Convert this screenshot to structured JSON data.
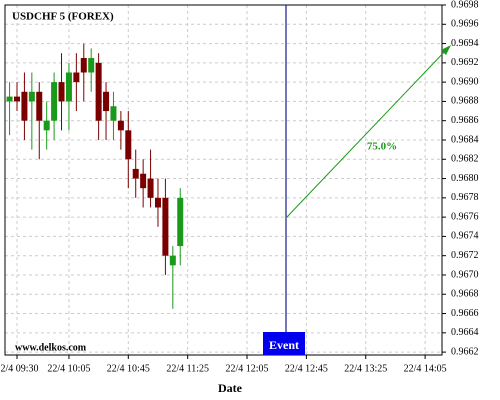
{
  "chart_data": {
    "type": "candlestick",
    "title": "USDCHF 5 (FOREX)",
    "x_label": "Date",
    "watermark": "www.delkos.com",
    "event_label": "Event",
    "arrow_label": "75.0%",
    "up_color": "#1a9a1a",
    "down_color": "#7a0000",
    "x": [
      "22/4 09:25",
      "22/4 09:30",
      "22/4 09:35",
      "22/4 09:40",
      "22/4 09:45",
      "22/4 09:50",
      "22/4 09:55",
      "22/4 10:00",
      "22/4 10:05",
      "22/4 10:10",
      "22/4 10:15",
      "22/4 10:20",
      "22/4 10:25",
      "22/4 10:30",
      "22/4 10:35",
      "22/4 10:40",
      "22/4 10:45",
      "22/4 10:50",
      "22/4 10:55",
      "22/4 11:00",
      "22/4 11:05",
      "22/4 11:10",
      "22/4 11:15",
      "22/4 11:20"
    ],
    "open": [
      0.9688,
      0.96885,
      0.9689,
      0.9688,
      0.9689,
      0.9685,
      0.9686,
      0.969,
      0.9688,
      0.9691,
      0.96925,
      0.9691,
      0.9692,
      0.9689,
      0.9686,
      0.9686,
      0.9685,
      0.9681,
      0.96805,
      0.968,
      0.9678,
      0.9678,
      0.9671,
      0.9673
    ],
    "high": [
      0.969,
      0.969,
      0.9691,
      0.9691,
      0.969,
      0.9688,
      0.9691,
      0.9693,
      0.9692,
      0.9693,
      0.9694,
      0.96935,
      0.9693,
      0.969,
      0.9689,
      0.9687,
      0.9687,
      0.9683,
      0.9682,
      0.9683,
      0.968,
      0.968,
      0.9673,
      0.9679
    ],
    "low": [
      0.96845,
      0.9687,
      0.9684,
      0.9683,
      0.9682,
      0.9683,
      0.9684,
      0.9685,
      0.9685,
      0.9687,
      0.9688,
      0.9689,
      0.9684,
      0.9684,
      0.9684,
      0.9683,
      0.9679,
      0.9678,
      0.9677,
      0.9677,
      0.9675,
      0.967,
      0.96665,
      0.9671
    ],
    "close": [
      0.96885,
      0.9688,
      0.9686,
      0.9689,
      0.9686,
      0.9686,
      0.969,
      0.9688,
      0.9691,
      0.969,
      0.9691,
      0.96925,
      0.9686,
      0.9687,
      0.96875,
      0.9685,
      0.9682,
      0.968,
      0.9679,
      0.9678,
      0.9677,
      0.9672,
      0.9672,
      0.9678
    ],
    "xticks": [
      "22/4 09:30",
      "22/4 10:05",
      "22/4 10:45",
      "22/4 11:25",
      "22/4 12:05",
      "22/4 12:45",
      "22/4 13:25",
      "22/4 14:05"
    ],
    "ylim": [
      0.96617,
      0.9698
    ],
    "yticks": [
      0.9662,
      0.9664,
      0.9666,
      0.9668,
      {
        "value": 0.967,
        "label": "0.9670"
      },
      0.9672,
      0.9674,
      0.9676,
      0.9678,
      {
        "value": 0.968,
        "label": "0.9680"
      },
      0.9682,
      0.9684,
      0.9686,
      0.9688,
      {
        "value": 0.969,
        "label": "0.9690"
      },
      0.9692,
      0.9694,
      0.9696,
      0.9698
    ],
    "grid": true
  }
}
